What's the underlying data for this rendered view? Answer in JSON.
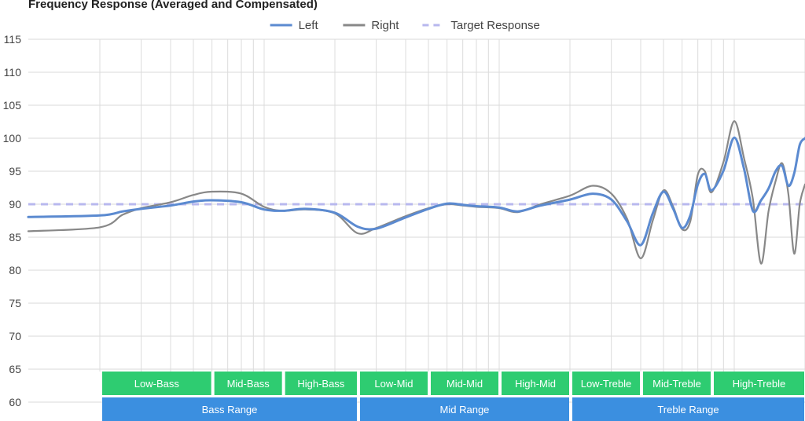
{
  "chart_data": {
    "type": "line",
    "title": "Frequency Response (Averaged and Compensated)",
    "xlabel": "",
    "ylabel": "",
    "ylim": [
      60,
      115
    ],
    "yticks": [
      115,
      110,
      105,
      100,
      95,
      90,
      85,
      80,
      75,
      70,
      65,
      60
    ],
    "x_scale": "log",
    "xlim": [
      20,
      20000
    ],
    "grid": true,
    "legend_position": "top-center",
    "legend": [
      {
        "label": "Left",
        "color": "#5b8ad0",
        "style": "solid"
      },
      {
        "label": "Right",
        "color": "#888888",
        "style": "solid"
      },
      {
        "label": "Target Response",
        "color": "#b8b8ee",
        "style": "dashed"
      }
    ],
    "series": [
      {
        "name": "Left",
        "color": "#5b8ad0",
        "x": [
          20,
          25,
          30,
          40,
          50,
          60,
          80,
          100,
          120,
          150,
          200,
          250,
          300,
          400,
          500,
          600,
          700,
          800,
          1000,
          1200,
          1500,
          2000,
          2500,
          3000,
          3500,
          4000,
          4500,
          5000,
          5500,
          6000,
          6500,
          7000,
          7500,
          8000,
          9000,
          10000,
          11000,
          12000,
          13000,
          14000,
          15000,
          16000,
          17000,
          18000,
          19000,
          20000
        ],
        "values": [
          88.3,
          88.9,
          89.3,
          89.8,
          90.4,
          90.6,
          90.3,
          89.2,
          89.0,
          89.3,
          88.7,
          86.6,
          86.3,
          88.0,
          89.3,
          90.1,
          89.9,
          89.7,
          89.5,
          88.9,
          89.8,
          90.7,
          91.6,
          90.7,
          87.4,
          83.8,
          88.6,
          91.9,
          89.3,
          86.4,
          88.3,
          93.0,
          94.6,
          92.1,
          95.1,
          100.1,
          95.4,
          89.0,
          90.6,
          92.4,
          95.0,
          95.8,
          92.8,
          94.7,
          99.0,
          100.0
        ]
      },
      {
        "name": "Right",
        "color": "#888888",
        "x": [
          20,
          25,
          30,
          40,
          50,
          60,
          80,
          100,
          120,
          150,
          200,
          250,
          300,
          400,
          500,
          600,
          700,
          800,
          1000,
          1200,
          1500,
          2000,
          2500,
          3000,
          3500,
          4000,
          4500,
          5000,
          5500,
          6000,
          6500,
          7000,
          7500,
          8000,
          9000,
          10000,
          11000,
          12000,
          13000,
          14000,
          15000,
          16000,
          17000,
          18000,
          19000,
          20000
        ],
        "values": [
          86.5,
          88.4,
          89.4,
          90.3,
          91.4,
          91.9,
          91.6,
          89.6,
          89.0,
          89.2,
          88.6,
          85.6,
          86.4,
          88.2,
          89.4,
          90.0,
          89.8,
          89.6,
          89.4,
          88.8,
          90.0,
          91.3,
          92.8,
          91.6,
          87.8,
          81.8,
          87.5,
          92.1,
          89.6,
          86.2,
          87.4,
          94.5,
          95.0,
          91.8,
          96.4,
          102.6,
          97.0,
          90.8,
          81.0,
          89.0,
          93.5,
          96.2,
          91.5,
          82.5,
          90.0,
          93.0
        ]
      },
      {
        "name": "Target Response",
        "color": "#b8b8ee",
        "x": [
          20,
          20000
        ],
        "values": [
          90,
          90
        ]
      }
    ],
    "bands": [
      {
        "row": "sub",
        "color": "#2ecc71",
        "items": [
          {
            "label": "Low-Bass",
            "from": 20,
            "to": 60
          },
          {
            "label": "Mid-Bass",
            "from": 60,
            "to": 120
          },
          {
            "label": "High-Bass",
            "from": 120,
            "to": 250
          },
          {
            "label": "Low-Mid",
            "from": 250,
            "to": 500
          },
          {
            "label": "Mid-Mid",
            "from": 500,
            "to": 1000
          },
          {
            "label": "High-Mid",
            "from": 1000,
            "to": 2000
          },
          {
            "label": "Low-Treble",
            "from": 2000,
            "to": 4000
          },
          {
            "label": "Mid-Treble",
            "from": 4000,
            "to": 8000
          },
          {
            "label": "High-Treble",
            "from": 8000,
            "to": 20000
          }
        ]
      },
      {
        "row": "main",
        "color": "#3b8fe0",
        "items": [
          {
            "label": "Bass Range",
            "from": 20,
            "to": 250
          },
          {
            "label": "Mid Range",
            "from": 250,
            "to": 2000
          },
          {
            "label": "Treble Range",
            "from": 2000,
            "to": 20000
          }
        ]
      }
    ]
  }
}
